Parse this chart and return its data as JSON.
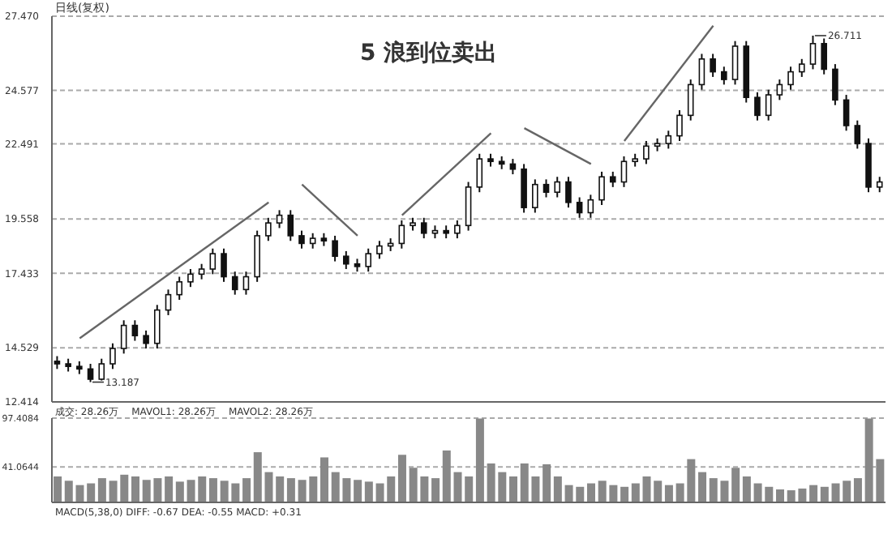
{
  "chart_data": [
    {
      "type": "candlestick",
      "title": "日线(复权)",
      "categories": [
        null,
        null,
        null,
        null,
        null,
        null,
        null,
        null,
        null,
        null,
        null,
        null,
        null,
        null,
        null,
        null,
        null,
        null,
        null,
        null,
        null,
        null,
        null,
        null,
        null,
        null,
        null,
        null,
        null,
        null,
        null,
        null,
        null,
        null,
        null,
        null,
        null,
        null,
        null,
        null,
        null,
        null,
        null,
        null,
        null,
        null,
        null,
        null,
        null,
        null,
        null,
        null,
        null,
        null,
        null,
        null,
        null,
        null,
        null,
        null,
        null,
        null,
        null,
        null,
        null,
        null,
        null,
        null,
        null,
        null,
        null,
        null,
        null,
        null,
        null
      ],
      "ohlc": [
        [
          14.0,
          14.2,
          13.7,
          13.9
        ],
        [
          13.9,
          14.1,
          13.6,
          13.8
        ],
        [
          13.8,
          14.0,
          13.5,
          13.7
        ],
        [
          13.7,
          13.9,
          13.187,
          13.3
        ],
        [
          13.3,
          14.1,
          13.25,
          13.9
        ],
        [
          13.9,
          14.7,
          13.7,
          14.5
        ],
        [
          14.5,
          15.6,
          14.3,
          15.4
        ],
        [
          15.4,
          15.6,
          14.8,
          15.0
        ],
        [
          15.0,
          15.2,
          14.5,
          14.7
        ],
        [
          14.7,
          16.2,
          14.5,
          16.0
        ],
        [
          16.0,
          16.8,
          15.8,
          16.6
        ],
        [
          16.6,
          17.3,
          16.4,
          17.1
        ],
        [
          17.1,
          17.6,
          16.9,
          17.4
        ],
        [
          17.4,
          17.8,
          17.2,
          17.6
        ],
        [
          17.6,
          18.4,
          17.4,
          18.2
        ],
        [
          18.2,
          18.4,
          17.1,
          17.3
        ],
        [
          17.3,
          17.5,
          16.6,
          16.8
        ],
        [
          16.8,
          17.5,
          16.6,
          17.3
        ],
        [
          17.3,
          19.1,
          17.1,
          18.9
        ],
        [
          18.9,
          19.6,
          18.7,
          19.4
        ],
        [
          19.4,
          19.9,
          19.2,
          19.7
        ],
        [
          19.7,
          19.9,
          18.7,
          18.9
        ],
        [
          18.9,
          19.1,
          18.4,
          18.6
        ],
        [
          18.6,
          19.0,
          18.4,
          18.8
        ],
        [
          18.8,
          19.0,
          18.5,
          18.7
        ],
        [
          18.7,
          18.9,
          17.9,
          18.1
        ],
        [
          18.1,
          18.3,
          17.6,
          17.8
        ],
        [
          17.8,
          18.0,
          17.5,
          17.7
        ],
        [
          17.7,
          18.4,
          17.5,
          18.2
        ],
        [
          18.2,
          18.7,
          18.0,
          18.5
        ],
        [
          18.5,
          18.8,
          18.3,
          18.6
        ],
        [
          18.6,
          19.5,
          18.4,
          19.3
        ],
        [
          19.3,
          19.6,
          19.1,
          19.4
        ],
        [
          19.4,
          19.6,
          18.8,
          19.0
        ],
        [
          19.0,
          19.3,
          18.8,
          19.1
        ],
        [
          19.1,
          19.3,
          18.8,
          19.0
        ],
        [
          19.0,
          19.5,
          18.8,
          19.3
        ],
        [
          19.3,
          21.0,
          19.1,
          20.8
        ],
        [
          20.8,
          22.1,
          20.6,
          21.9
        ],
        [
          21.9,
          22.1,
          21.6,
          21.8
        ],
        [
          21.8,
          22.0,
          21.5,
          21.7
        ],
        [
          21.7,
          21.9,
          21.3,
          21.5
        ],
        [
          21.5,
          21.7,
          19.8,
          20.0
        ],
        [
          20.0,
          21.1,
          19.8,
          20.9
        ],
        [
          20.9,
          21.1,
          20.4,
          20.6
        ],
        [
          20.6,
          21.2,
          20.4,
          21.0
        ],
        [
          21.0,
          21.2,
          20.0,
          20.2
        ],
        [
          20.2,
          20.4,
          19.6,
          19.8
        ],
        [
          19.8,
          20.5,
          19.6,
          20.3
        ],
        [
          20.3,
          21.4,
          20.1,
          21.2
        ],
        [
          21.2,
          21.4,
          20.8,
          21.0
        ],
        [
          21.0,
          22.0,
          20.8,
          21.8
        ],
        [
          21.8,
          22.1,
          21.6,
          21.9
        ],
        [
          21.9,
          22.6,
          21.7,
          22.4
        ],
        [
          22.4,
          22.7,
          22.2,
          22.5
        ],
        [
          22.5,
          23.0,
          22.3,
          22.8
        ],
        [
          22.8,
          23.8,
          22.6,
          23.6
        ],
        [
          23.6,
          25.0,
          23.4,
          24.8
        ],
        [
          24.8,
          26.0,
          24.6,
          25.8
        ],
        [
          25.8,
          26.0,
          25.1,
          25.3
        ],
        [
          25.3,
          25.5,
          24.8,
          25.0
        ],
        [
          25.0,
          26.5,
          24.8,
          26.3
        ],
        [
          26.3,
          26.5,
          24.1,
          24.3
        ],
        [
          24.3,
          24.5,
          23.4,
          23.6
        ],
        [
          23.6,
          24.6,
          23.4,
          24.4
        ],
        [
          24.4,
          25.0,
          24.2,
          24.8
        ],
        [
          24.8,
          25.5,
          24.6,
          25.3
        ],
        [
          25.3,
          25.8,
          25.1,
          25.6
        ],
        [
          25.6,
          26.711,
          25.4,
          26.4
        ],
        [
          26.4,
          26.6,
          25.2,
          25.4
        ],
        [
          25.4,
          25.6,
          24.0,
          24.2
        ],
        [
          24.2,
          24.4,
          23.0,
          23.2
        ],
        [
          23.2,
          23.4,
          22.3,
          22.5
        ],
        [
          22.5,
          22.7,
          20.6,
          20.8
        ],
        [
          20.8,
          21.2,
          20.6,
          21.0
        ]
      ],
      "color": "#111111",
      "series": [
        {
          "type": "line",
          "color": "#666666",
          "values": [
            null,
            null,
            14.9,
            null,
            null,
            null,
            null,
            null,
            null,
            null,
            null,
            null,
            null,
            null,
            null,
            null,
            null,
            null,
            null,
            20.2,
            null,
            null,
            null,
            null,
            null,
            null,
            null,
            null,
            null,
            null,
            null,
            null,
            null,
            null,
            null,
            null,
            null,
            null,
            null,
            null,
            null,
            null,
            null,
            null,
            null,
            null,
            null,
            null,
            null,
            null,
            null,
            null,
            null,
            null,
            null,
            null,
            null,
            null,
            null,
            null,
            null,
            null,
            null,
            null,
            null,
            null,
            null,
            null,
            null,
            null,
            null,
            null,
            null,
            null,
            null
          ]
        },
        {
          "type": "line",
          "color": "#666666",
          "values": [
            null,
            null,
            null,
            null,
            null,
            null,
            null,
            null,
            null,
            null,
            null,
            null,
            null,
            null,
            null,
            null,
            null,
            null,
            null,
            null,
            null,
            null,
            20.9,
            null,
            null,
            null,
            null,
            18.9,
            null,
            null,
            null,
            null,
            null,
            null,
            null,
            null,
            null,
            null,
            null,
            null,
            null,
            null,
            null,
            null,
            null,
            null,
            null,
            null,
            null,
            null,
            null,
            null,
            null,
            null,
            null,
            null,
            null,
            null,
            null,
            null,
            null,
            null,
            null,
            null,
            null,
            null,
            null,
            null,
            null,
            null,
            null,
            null,
            null,
            null,
            null
          ]
        },
        {
          "type": "line",
          "color": "#666666",
          "values": [
            null,
            null,
            null,
            null,
            null,
            null,
            null,
            null,
            null,
            null,
            null,
            null,
            null,
            null,
            null,
            null,
            null,
            null,
            null,
            null,
            null,
            null,
            null,
            null,
            null,
            null,
            null,
            null,
            null,
            null,
            null,
            19.7,
            null,
            null,
            null,
            null,
            null,
            null,
            null,
            22.9,
            null,
            null,
            null,
            null,
            null,
            null,
            null,
            null,
            null,
            null,
            null,
            null,
            null,
            null,
            null,
            null,
            null,
            null,
            null,
            null,
            null,
            null,
            null,
            null,
            null,
            null,
            null,
            null,
            null,
            null,
            null,
            null,
            null,
            null,
            null
          ]
        },
        {
          "type": "line",
          "color": "#666666",
          "values": [
            null,
            null,
            null,
            null,
            null,
            null,
            null,
            null,
            null,
            null,
            null,
            null,
            null,
            null,
            null,
            null,
            null,
            null,
            null,
            null,
            null,
            null,
            null,
            null,
            null,
            null,
            null,
            null,
            null,
            null,
            null,
            null,
            null,
            null,
            null,
            null,
            null,
            null,
            null,
            null,
            null,
            null,
            23.1,
            null,
            null,
            null,
            null,
            null,
            21.7,
            null,
            null,
            null,
            null,
            null,
            null,
            null,
            null,
            null,
            null,
            null,
            null,
            null,
            null,
            null,
            null,
            null,
            null,
            null,
            null,
            null,
            null,
            null,
            null,
            null,
            null
          ]
        },
        {
          "type": "line",
          "color": "#666666",
          "values": [
            null,
            null,
            null,
            null,
            null,
            null,
            null,
            null,
            null,
            null,
            null,
            null,
            null,
            null,
            null,
            null,
            null,
            null,
            null,
            null,
            null,
            null,
            null,
            null,
            null,
            null,
            null,
            null,
            null,
            null,
            null,
            null,
            null,
            null,
            null,
            null,
            null,
            null,
            null,
            null,
            null,
            null,
            null,
            null,
            null,
            null,
            null,
            null,
            null,
            null,
            null,
            22.6,
            null,
            null,
            null,
            null,
            null,
            null,
            null,
            27.1,
            null,
            null,
            null,
            null,
            null,
            null,
            null,
            null,
            null,
            null,
            null,
            null,
            null,
            null,
            null
          ]
        }
      ],
      "ylim": [
        12.414,
        27.47
      ],
      "yticks": [
        {
          "value": 27.47,
          "label": "27.470"
        },
        24.577,
        22.491,
        19.558,
        17.433,
        14.529,
        12.414
      ],
      "grid": "y",
      "annotations": [
        "5 浪到位卖出",
        "13.187",
        "26.711"
      ]
    },
    {
      "type": "bar",
      "categories": [
        null,
        null,
        null,
        null,
        null,
        null,
        null,
        null,
        null,
        null,
        null,
        null,
        null,
        null,
        null,
        null,
        null,
        null,
        null,
        null,
        null,
        null,
        null,
        null,
        null,
        null,
        null,
        null,
        null,
        null,
        null,
        null,
        null,
        null,
        null,
        null,
        null,
        null,
        null,
        null,
        null,
        null,
        null,
        null,
        null,
        null,
        null,
        null,
        null,
        null,
        null,
        null,
        null,
        null,
        null,
        null,
        null,
        null,
        null,
        null,
        null,
        null,
        null,
        null,
        null,
        null,
        null,
        null,
        null,
        null,
        null,
        null,
        null,
        null,
        null
      ],
      "values": [
        30,
        25,
        20,
        22,
        28,
        25,
        32,
        30,
        26,
        28,
        30,
        24,
        26,
        30,
        28,
        25,
        22,
        28,
        58,
        35,
        30,
        28,
        26,
        30,
        52,
        35,
        28,
        26,
        24,
        22,
        30,
        55,
        40,
        30,
        28,
        60,
        35,
        30,
        97,
        45,
        35,
        30,
        45,
        30,
        44,
        30,
        20,
        18,
        22,
        25,
        20,
        18,
        22,
        30,
        25,
        20,
        22,
        50,
        35,
        28,
        25,
        40,
        30,
        22,
        18,
        15,
        14,
        16,
        20,
        18,
        22,
        25,
        28,
        97,
        50
      ],
      "color": "#888888",
      "ylim": [
        0,
        97.4084
      ],
      "yticks": [
        41.0644,
        97.4084
      ],
      "grid": "y",
      "annotations": [
        "成交: 28.26万",
        "MAVOL1: 28.26万",
        "MAVOL2: 28.26万",
        "MACD(5,38,0) DIFF: -0.67 DEA: -0.55 MACD: +0.31"
      ]
    }
  ]
}
